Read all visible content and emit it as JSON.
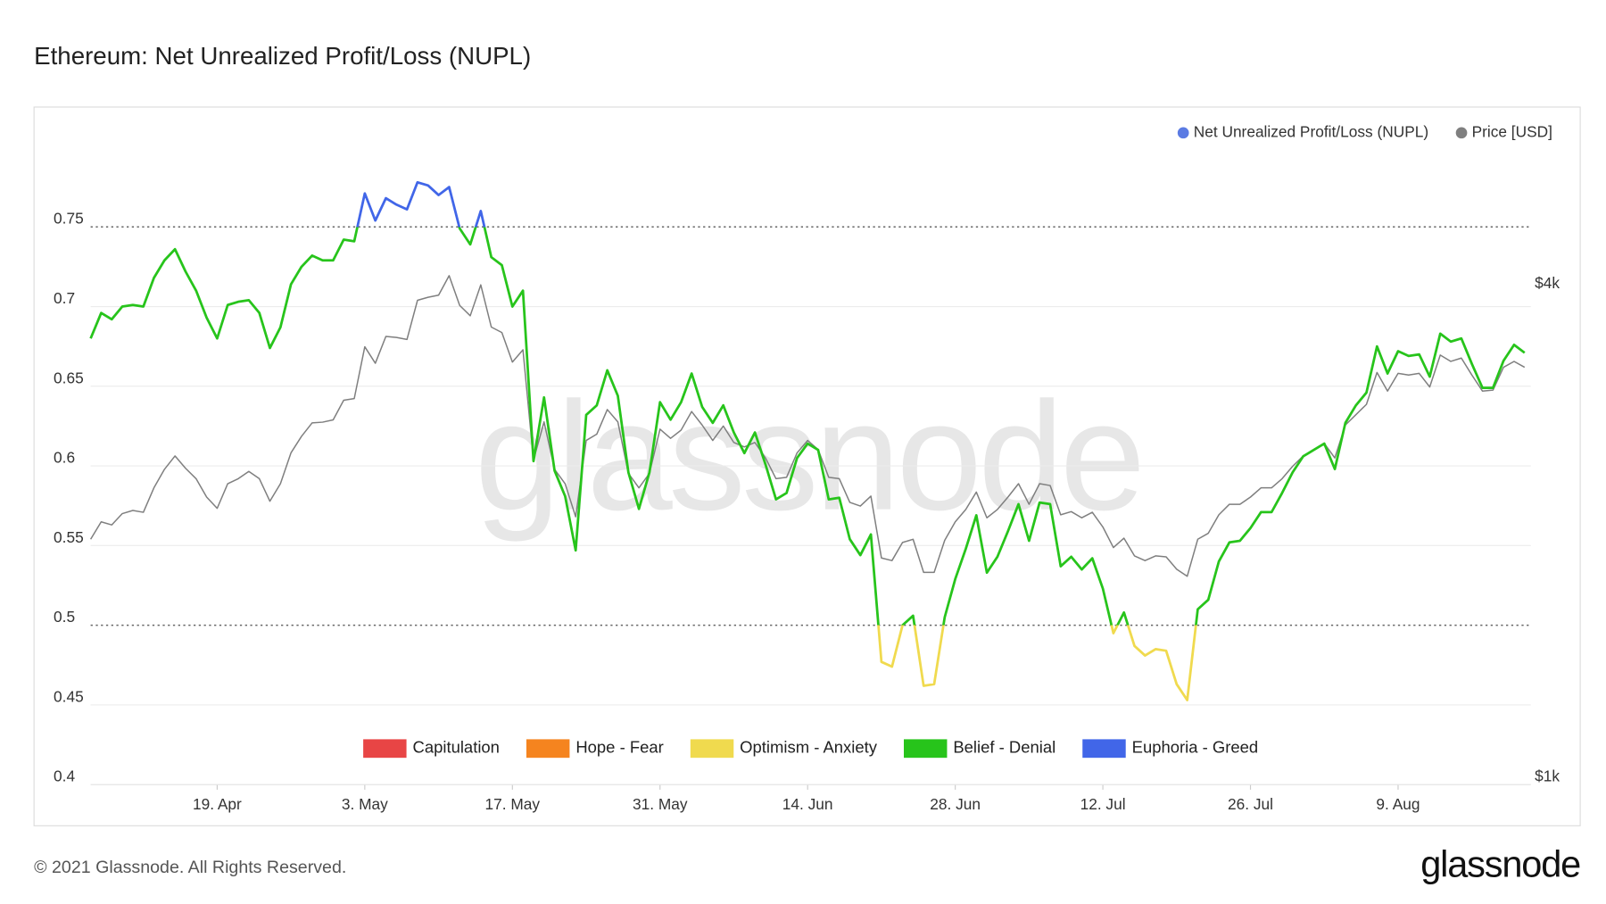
{
  "chart_data": {
    "type": "line",
    "title": "Ethereum: Net Unrealized Profit/Loss (NUPL)",
    "watermark": "glassnode",
    "footer": "© 2021 Glassnode. All Rights Reserved.",
    "logo": "glassnode",
    "x": [
      "7. Apr",
      "8. Apr",
      "9. Apr",
      "10. Apr",
      "11. Apr",
      "12. Apr",
      "13. Apr",
      "14. Apr",
      "15. Apr",
      "16. Apr",
      "17. Apr",
      "18. Apr",
      "19. Apr",
      "20. Apr",
      "21. Apr",
      "22. Apr",
      "23. Apr",
      "24. Apr",
      "25. Apr",
      "26. Apr",
      "27. Apr",
      "28. Apr",
      "29. Apr",
      "30. Apr",
      "1. May",
      "2. May",
      "3. May",
      "4. May",
      "5. May",
      "6. May",
      "7. May",
      "8. May",
      "9. May",
      "10. May",
      "11. May",
      "12. May",
      "13. May",
      "14. May",
      "15. May",
      "16. May",
      "17. May",
      "18. May",
      "19. May",
      "20. May",
      "21. May",
      "22. May",
      "23. May",
      "24. May",
      "25. May",
      "26. May",
      "27. May",
      "28. May",
      "29. May",
      "30. May",
      "31. May",
      "1. Jun",
      "2. Jun",
      "3. Jun",
      "4. Jun",
      "5. Jun",
      "6. Jun",
      "7. Jun",
      "8. Jun",
      "9. Jun",
      "10. Jun",
      "11. Jun",
      "12. Jun",
      "13. Jun",
      "14. Jun",
      "15. Jun",
      "16. Jun",
      "17. Jun",
      "18. Jun",
      "19. Jun",
      "20. Jun",
      "21. Jun",
      "22. Jun",
      "23. Jun",
      "24. Jun",
      "25. Jun",
      "26. Jun",
      "27. Jun",
      "28. Jun",
      "29. Jun",
      "30. Jun",
      "1. Jul",
      "2. Jul",
      "3. Jul",
      "4. Jul",
      "5. Jul",
      "6. Jul",
      "7. Jul",
      "8. Jul",
      "9. Jul",
      "10. Jul",
      "11. Jul",
      "12. Jul",
      "13. Jul",
      "14. Jul",
      "15. Jul",
      "16. Jul",
      "17. Jul",
      "18. Jul",
      "19. Jul",
      "20. Jul",
      "21. Jul",
      "22. Jul",
      "23. Jul",
      "24. Jul",
      "25. Jul",
      "26. Jul",
      "27. Jul",
      "28. Jul",
      "29. Jul",
      "30. Jul",
      "31. Jul",
      "1. Aug",
      "2. Aug",
      "3. Aug",
      "4. Aug",
      "5. Aug",
      "6. Aug",
      "7. Aug",
      "8. Aug",
      "9. Aug",
      "10. Aug",
      "11. Aug",
      "12. Aug",
      "13. Aug",
      "14. Aug",
      "15. Aug",
      "16. Aug",
      "17. Aug",
      "18. Aug",
      "19. Aug",
      "20. Aug",
      "21. Aug"
    ],
    "xticks": [
      "19. Apr",
      "3. May",
      "17. May",
      "31. May",
      "14. Jun",
      "28. Jun",
      "12. Jul",
      "26. Jul",
      "9. Aug"
    ],
    "ylim": [
      0.4,
      0.8
    ],
    "yticks": [
      0.4,
      0.45,
      0.5,
      0.55,
      0.6,
      0.65,
      0.7,
      0.75
    ],
    "y2lim": [
      1000,
      6000
    ],
    "y2log": true,
    "y2ticks": [
      {
        "value": 1000,
        "label": "$1k"
      },
      {
        "value": 4000,
        "label": "$4k"
      }
    ],
    "grid": true,
    "legend": "top-right",
    "series": [
      {
        "name": "Net Unrealized Profit/Loss (NUPL)",
        "color": "#5b7be3",
        "colored_by": "zones",
        "values": [
          0.68,
          0.696,
          0.692,
          0.7,
          0.701,
          0.7,
          0.718,
          0.729,
          0.736,
          0.722,
          0.71,
          0.693,
          0.68,
          0.701,
          0.703,
          0.704,
          0.696,
          0.674,
          0.687,
          0.714,
          0.725,
          0.732,
          0.729,
          0.729,
          0.742,
          0.741,
          0.771,
          0.754,
          0.768,
          0.764,
          0.761,
          0.778,
          0.776,
          0.77,
          0.775,
          0.749,
          0.739,
          0.76,
          0.731,
          0.726,
          0.7,
          0.71,
          0.603,
          0.643,
          0.597,
          0.581,
          0.547,
          0.632,
          0.638,
          0.66,
          0.644,
          0.596,
          0.573,
          0.596,
          0.64,
          0.629,
          0.64,
          0.658,
          0.637,
          0.627,
          0.638,
          0.621,
          0.608,
          0.621,
          0.601,
          0.579,
          0.583,
          0.605,
          0.614,
          0.61,
          0.579,
          0.58,
          0.554,
          0.544,
          0.557,
          0.477,
          0.474,
          0.5,
          0.506,
          0.462,
          0.463,
          0.505,
          0.529,
          0.548,
          0.569,
          0.533,
          0.543,
          0.559,
          0.576,
          0.553,
          0.577,
          0.576,
          0.537,
          0.543,
          0.535,
          0.542,
          0.523,
          0.495,
          0.508,
          0.487,
          0.481,
          0.485,
          0.484,
          0.463,
          0.453,
          0.51,
          0.516,
          0.54,
          0.552,
          0.553,
          0.561,
          0.571,
          0.571,
          0.583,
          0.596,
          0.606,
          0.61,
          0.614,
          0.598,
          0.627,
          0.638,
          0.646,
          0.675,
          0.658,
          0.672,
          0.669,
          0.67,
          0.656,
          0.683,
          0.678,
          0.68,
          0.664,
          0.649,
          0.649,
          0.666,
          0.676,
          0.671
        ]
      },
      {
        "name": "Price [USD]",
        "color": "#7f7f7f",
        "axis": "y2",
        "values": [
          1993,
          2093,
          2075,
          2142,
          2161,
          2150,
          2303,
          2426,
          2519,
          2433,
          2363,
          2244,
          2174,
          2330,
          2363,
          2412,
          2363,
          2218,
          2330,
          2541,
          2662,
          2764,
          2770,
          2788,
          2946,
          2960,
          3424,
          3269,
          3525,
          3515,
          3495,
          3902,
          3935,
          3959,
          4182,
          3846,
          3736,
          4075,
          3619,
          3564,
          3280,
          3395,
          2490,
          2772,
          2426,
          2330,
          2123,
          2631,
          2678,
          2870,
          2772,
          2399,
          2303,
          2399,
          2716,
          2647,
          2709,
          2854,
          2747,
          2631,
          2740,
          2616,
          2584,
          2616,
          2505,
          2363,
          2372,
          2541,
          2631,
          2564,
          2372,
          2363,
          2211,
          2188,
          2250,
          1891,
          1877,
          1975,
          1993,
          1816,
          1816,
          1987,
          2093,
          2167,
          2276,
          2117,
          2167,
          2244,
          2330,
          2199,
          2330,
          2318,
          2135,
          2154,
          2117,
          2150,
          2063,
          1947,
          1999,
          1902,
          1877,
          1902,
          1897,
          1832,
          1796,
          1993,
          2027,
          2135,
          2199,
          2199,
          2244,
          2303,
          2303,
          2363,
          2447,
          2519,
          2564,
          2609,
          2505,
          2748,
          2829,
          2912,
          3185,
          3023,
          3177,
          3162,
          3177,
          3058,
          3345,
          3286,
          3317,
          3162,
          3023,
          3031,
          3232,
          3286,
          3232
        ]
      }
    ],
    "zones": [
      {
        "name": "Capitulation",
        "color": "#e84545",
        "range": [
          null,
          0
        ]
      },
      {
        "name": "Hope - Fear",
        "color": "#f5841f",
        "range": [
          0,
          0.25
        ]
      },
      {
        "name": "Optimism - Anxiety",
        "color": "#f0da4e",
        "range": [
          0.25,
          0.5
        ]
      },
      {
        "name": "Belief - Denial",
        "color": "#27c41b",
        "range": [
          0.5,
          0.75
        ]
      },
      {
        "name": "Euphoria - Greed",
        "color": "#4166e8",
        "range": [
          0.75,
          null
        ]
      }
    ]
  }
}
